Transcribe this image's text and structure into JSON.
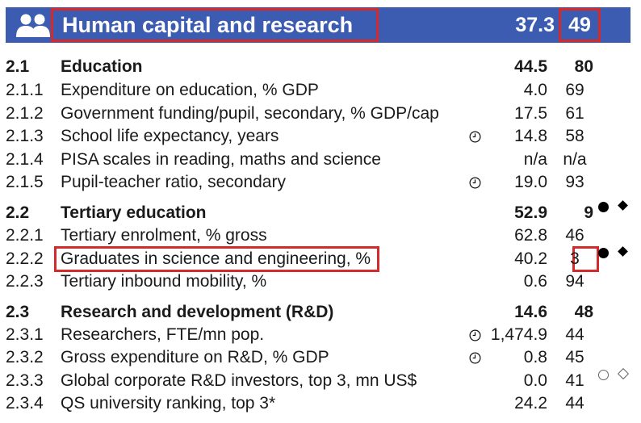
{
  "header": {
    "icon": "people-icon",
    "title": "Human capital and research",
    "score": "37.3",
    "rank": "49"
  },
  "rows": [
    {
      "code": "2.1",
      "label": "Education",
      "score": "44.5",
      "rank": "80",
      "section": true
    },
    {
      "code": "2.1.1",
      "label": "Expenditure on education, % GDP",
      "score": "4.0",
      "rank": "69"
    },
    {
      "code": "2.1.2",
      "label": "Government funding/pupil, secondary, % GDP/cap",
      "score": "17.5",
      "rank": "61"
    },
    {
      "code": "2.1.3",
      "label": "School life expectancy, years",
      "score": "14.8",
      "rank": "58",
      "clock": true
    },
    {
      "code": "2.1.4",
      "label": "PISA scales in reading, maths and science",
      "score": "n/a",
      "rank": "n/a"
    },
    {
      "code": "2.1.5",
      "label": "Pupil-teacher ratio, secondary",
      "score": "19.0",
      "rank": "93",
      "clock": true
    },
    {
      "code": "2.2",
      "label": "Tertiary education",
      "score": "52.9",
      "rank": "9",
      "section": true,
      "marks": "strength"
    },
    {
      "code": "2.2.1",
      "label": "Tertiary enrolment, % gross",
      "score": "62.8",
      "rank": "46"
    },
    {
      "code": "2.2.2",
      "label": "Graduates in science and engineering, %",
      "score": "40.2",
      "rank": "3",
      "marks": "strength"
    },
    {
      "code": "2.2.3",
      "label": "Tertiary inbound mobility, %",
      "score": "0.6",
      "rank": "94"
    },
    {
      "code": "2.3",
      "label": "Research and development (R&D)",
      "score": "14.6",
      "rank": "48",
      "section": true
    },
    {
      "code": "2.3.1",
      "label": "Researchers, FTE/mn pop.",
      "score": "1,474.9",
      "rank": "44",
      "clock": true
    },
    {
      "code": "2.3.2",
      "label": "Gross expenditure on R&D, % GDP",
      "score": "0.8",
      "rank": "45",
      "clock": true
    },
    {
      "code": "2.3.3",
      "label": "Global corporate R&D investors, top 3, mn US$",
      "score": "0.0",
      "rank": "41",
      "marks": "weakness"
    },
    {
      "code": "2.3.4",
      "label": "QS university ranking, top 3*",
      "score": "24.2",
      "rank": "44"
    }
  ],
  "colors": {
    "header_bg": "#3b5cb0",
    "highlight": "#d42a2a"
  }
}
